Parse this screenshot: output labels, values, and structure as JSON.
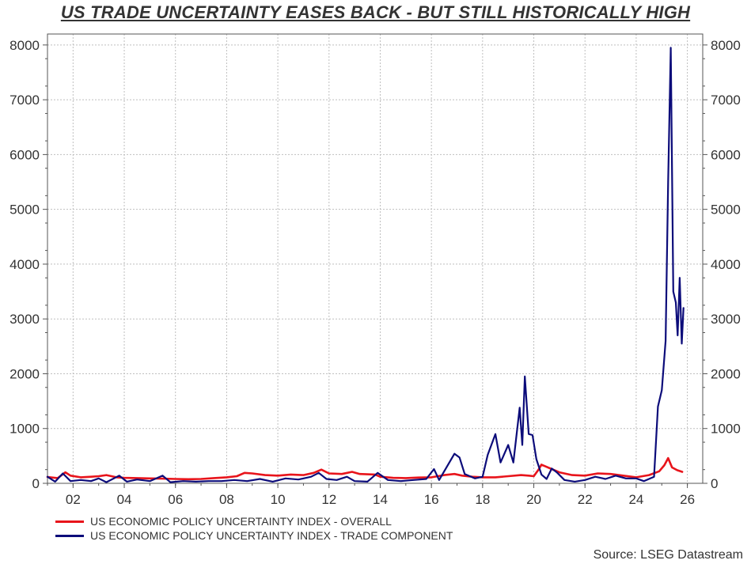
{
  "chart_data": {
    "type": "line",
    "title": "US TRADE UNCERTAINTY EASES BACK - BUT STILL HISTORICALLY HIGH",
    "source": "Source: LSEG Datastream",
    "x_tick_labels": [
      "02",
      "04",
      "06",
      "08",
      "10",
      "12",
      "14",
      "16",
      "18",
      "20",
      "22",
      "24",
      "26"
    ],
    "y_tick_labels": [
      "0",
      "1000",
      "2000",
      "3000",
      "4000",
      "5000",
      "6000",
      "7000",
      "8000"
    ],
    "xlim": [
      2001.0,
      2026.6
    ],
    "ylim": [
      0,
      8200
    ],
    "grid": true,
    "legend_position": "bottom-left",
    "series": [
      {
        "name": "US ECONOMIC POLICY UNCERTAINTY INDEX - OVERALL",
        "color": "#e8141b",
        "points": [
          [
            2001.0,
            115
          ],
          [
            2001.4,
            95
          ],
          [
            2001.7,
            200
          ],
          [
            2001.9,
            140
          ],
          [
            2002.3,
            110
          ],
          [
            2002.7,
            120
          ],
          [
            2003.0,
            130
          ],
          [
            2003.3,
            150
          ],
          [
            2003.7,
            110
          ],
          [
            2004.0,
            100
          ],
          [
            2004.5,
            95
          ],
          [
            2005.0,
            90
          ],
          [
            2005.5,
            85
          ],
          [
            2006.0,
            80
          ],
          [
            2006.5,
            75
          ],
          [
            2007.0,
            80
          ],
          [
            2007.5,
            95
          ],
          [
            2008.0,
            110
          ],
          [
            2008.4,
            130
          ],
          [
            2008.7,
            190
          ],
          [
            2009.0,
            180
          ],
          [
            2009.5,
            150
          ],
          [
            2010.0,
            140
          ],
          [
            2010.5,
            160
          ],
          [
            2011.0,
            150
          ],
          [
            2011.4,
            190
          ],
          [
            2011.7,
            250
          ],
          [
            2012.0,
            180
          ],
          [
            2012.5,
            170
          ],
          [
            2012.9,
            210
          ],
          [
            2013.2,
            170
          ],
          [
            2013.8,
            160
          ],
          [
            2014.0,
            120
          ],
          [
            2014.5,
            100
          ],
          [
            2015.0,
            95
          ],
          [
            2015.5,
            105
          ],
          [
            2016.0,
            110
          ],
          [
            2016.5,
            150
          ],
          [
            2016.9,
            170
          ],
          [
            2017.2,
            140
          ],
          [
            2017.6,
            120
          ],
          [
            2018.0,
            110
          ],
          [
            2018.5,
            110
          ],
          [
            2019.0,
            130
          ],
          [
            2019.5,
            150
          ],
          [
            2019.8,
            140
          ],
          [
            2020.0,
            130
          ],
          [
            2020.2,
            260
          ],
          [
            2020.3,
            340
          ],
          [
            2020.5,
            300
          ],
          [
            2020.7,
            260
          ],
          [
            2021.0,
            200
          ],
          [
            2021.5,
            150
          ],
          [
            2022.0,
            140
          ],
          [
            2022.5,
            180
          ],
          [
            2023.0,
            170
          ],
          [
            2023.5,
            140
          ],
          [
            2024.0,
            110
          ],
          [
            2024.5,
            150
          ],
          [
            2024.9,
            220
          ],
          [
            2025.1,
            330
          ],
          [
            2025.25,
            460
          ],
          [
            2025.4,
            290
          ],
          [
            2025.6,
            240
          ],
          [
            2025.8,
            210
          ]
        ]
      },
      {
        "name": "US ECONOMIC POLICY UNCERTAINTY INDEX - TRADE COMPONENT",
        "color": "#0c0c7a",
        "points": [
          [
            2001.0,
            120
          ],
          [
            2001.3,
            30
          ],
          [
            2001.6,
            180
          ],
          [
            2001.9,
            40
          ],
          [
            2002.3,
            60
          ],
          [
            2002.7,
            40
          ],
          [
            2003.0,
            90
          ],
          [
            2003.3,
            20
          ],
          [
            2003.8,
            140
          ],
          [
            2004.1,
            30
          ],
          [
            2004.5,
            70
          ],
          [
            2005.0,
            40
          ],
          [
            2005.5,
            140
          ],
          [
            2005.8,
            20
          ],
          [
            2006.3,
            40
          ],
          [
            2006.8,
            30
          ],
          [
            2007.3,
            40
          ],
          [
            2007.8,
            40
          ],
          [
            2008.3,
            60
          ],
          [
            2008.8,
            40
          ],
          [
            2009.3,
            80
          ],
          [
            2009.8,
            30
          ],
          [
            2010.3,
            90
          ],
          [
            2010.8,
            70
          ],
          [
            2011.3,
            120
          ],
          [
            2011.6,
            190
          ],
          [
            2011.9,
            80
          ],
          [
            2012.3,
            60
          ],
          [
            2012.7,
            120
          ],
          [
            2013.0,
            40
          ],
          [
            2013.5,
            30
          ],
          [
            2013.9,
            190
          ],
          [
            2014.3,
            60
          ],
          [
            2014.8,
            40
          ],
          [
            2015.3,
            60
          ],
          [
            2015.8,
            80
          ],
          [
            2016.1,
            260
          ],
          [
            2016.3,
            60
          ],
          [
            2016.9,
            540
          ],
          [
            2017.1,
            470
          ],
          [
            2017.3,
            170
          ],
          [
            2017.7,
            90
          ],
          [
            2018.0,
            120
          ],
          [
            2018.2,
            520
          ],
          [
            2018.5,
            900
          ],
          [
            2018.7,
            380
          ],
          [
            2019.0,
            700
          ],
          [
            2019.2,
            380
          ],
          [
            2019.45,
            1380
          ],
          [
            2019.55,
            700
          ],
          [
            2019.65,
            1950
          ],
          [
            2019.8,
            900
          ],
          [
            2019.95,
            880
          ],
          [
            2020.1,
            440
          ],
          [
            2020.3,
            160
          ],
          [
            2020.5,
            80
          ],
          [
            2020.7,
            270
          ],
          [
            2020.9,
            200
          ],
          [
            2021.2,
            60
          ],
          [
            2021.6,
            30
          ],
          [
            2022.0,
            60
          ],
          [
            2022.4,
            120
          ],
          [
            2022.8,
            80
          ],
          [
            2023.2,
            140
          ],
          [
            2023.6,
            90
          ],
          [
            2024.0,
            90
          ],
          [
            2024.3,
            40
          ],
          [
            2024.7,
            120
          ],
          [
            2024.85,
            1400
          ],
          [
            2025.0,
            1700
          ],
          [
            2025.15,
            2600
          ],
          [
            2025.25,
            5500
          ],
          [
            2025.35,
            7950
          ],
          [
            2025.45,
            3500
          ],
          [
            2025.55,
            3300
          ],
          [
            2025.62,
            2700
          ],
          [
            2025.7,
            3750
          ],
          [
            2025.78,
            2550
          ],
          [
            2025.85,
            3200
          ]
        ]
      }
    ]
  }
}
